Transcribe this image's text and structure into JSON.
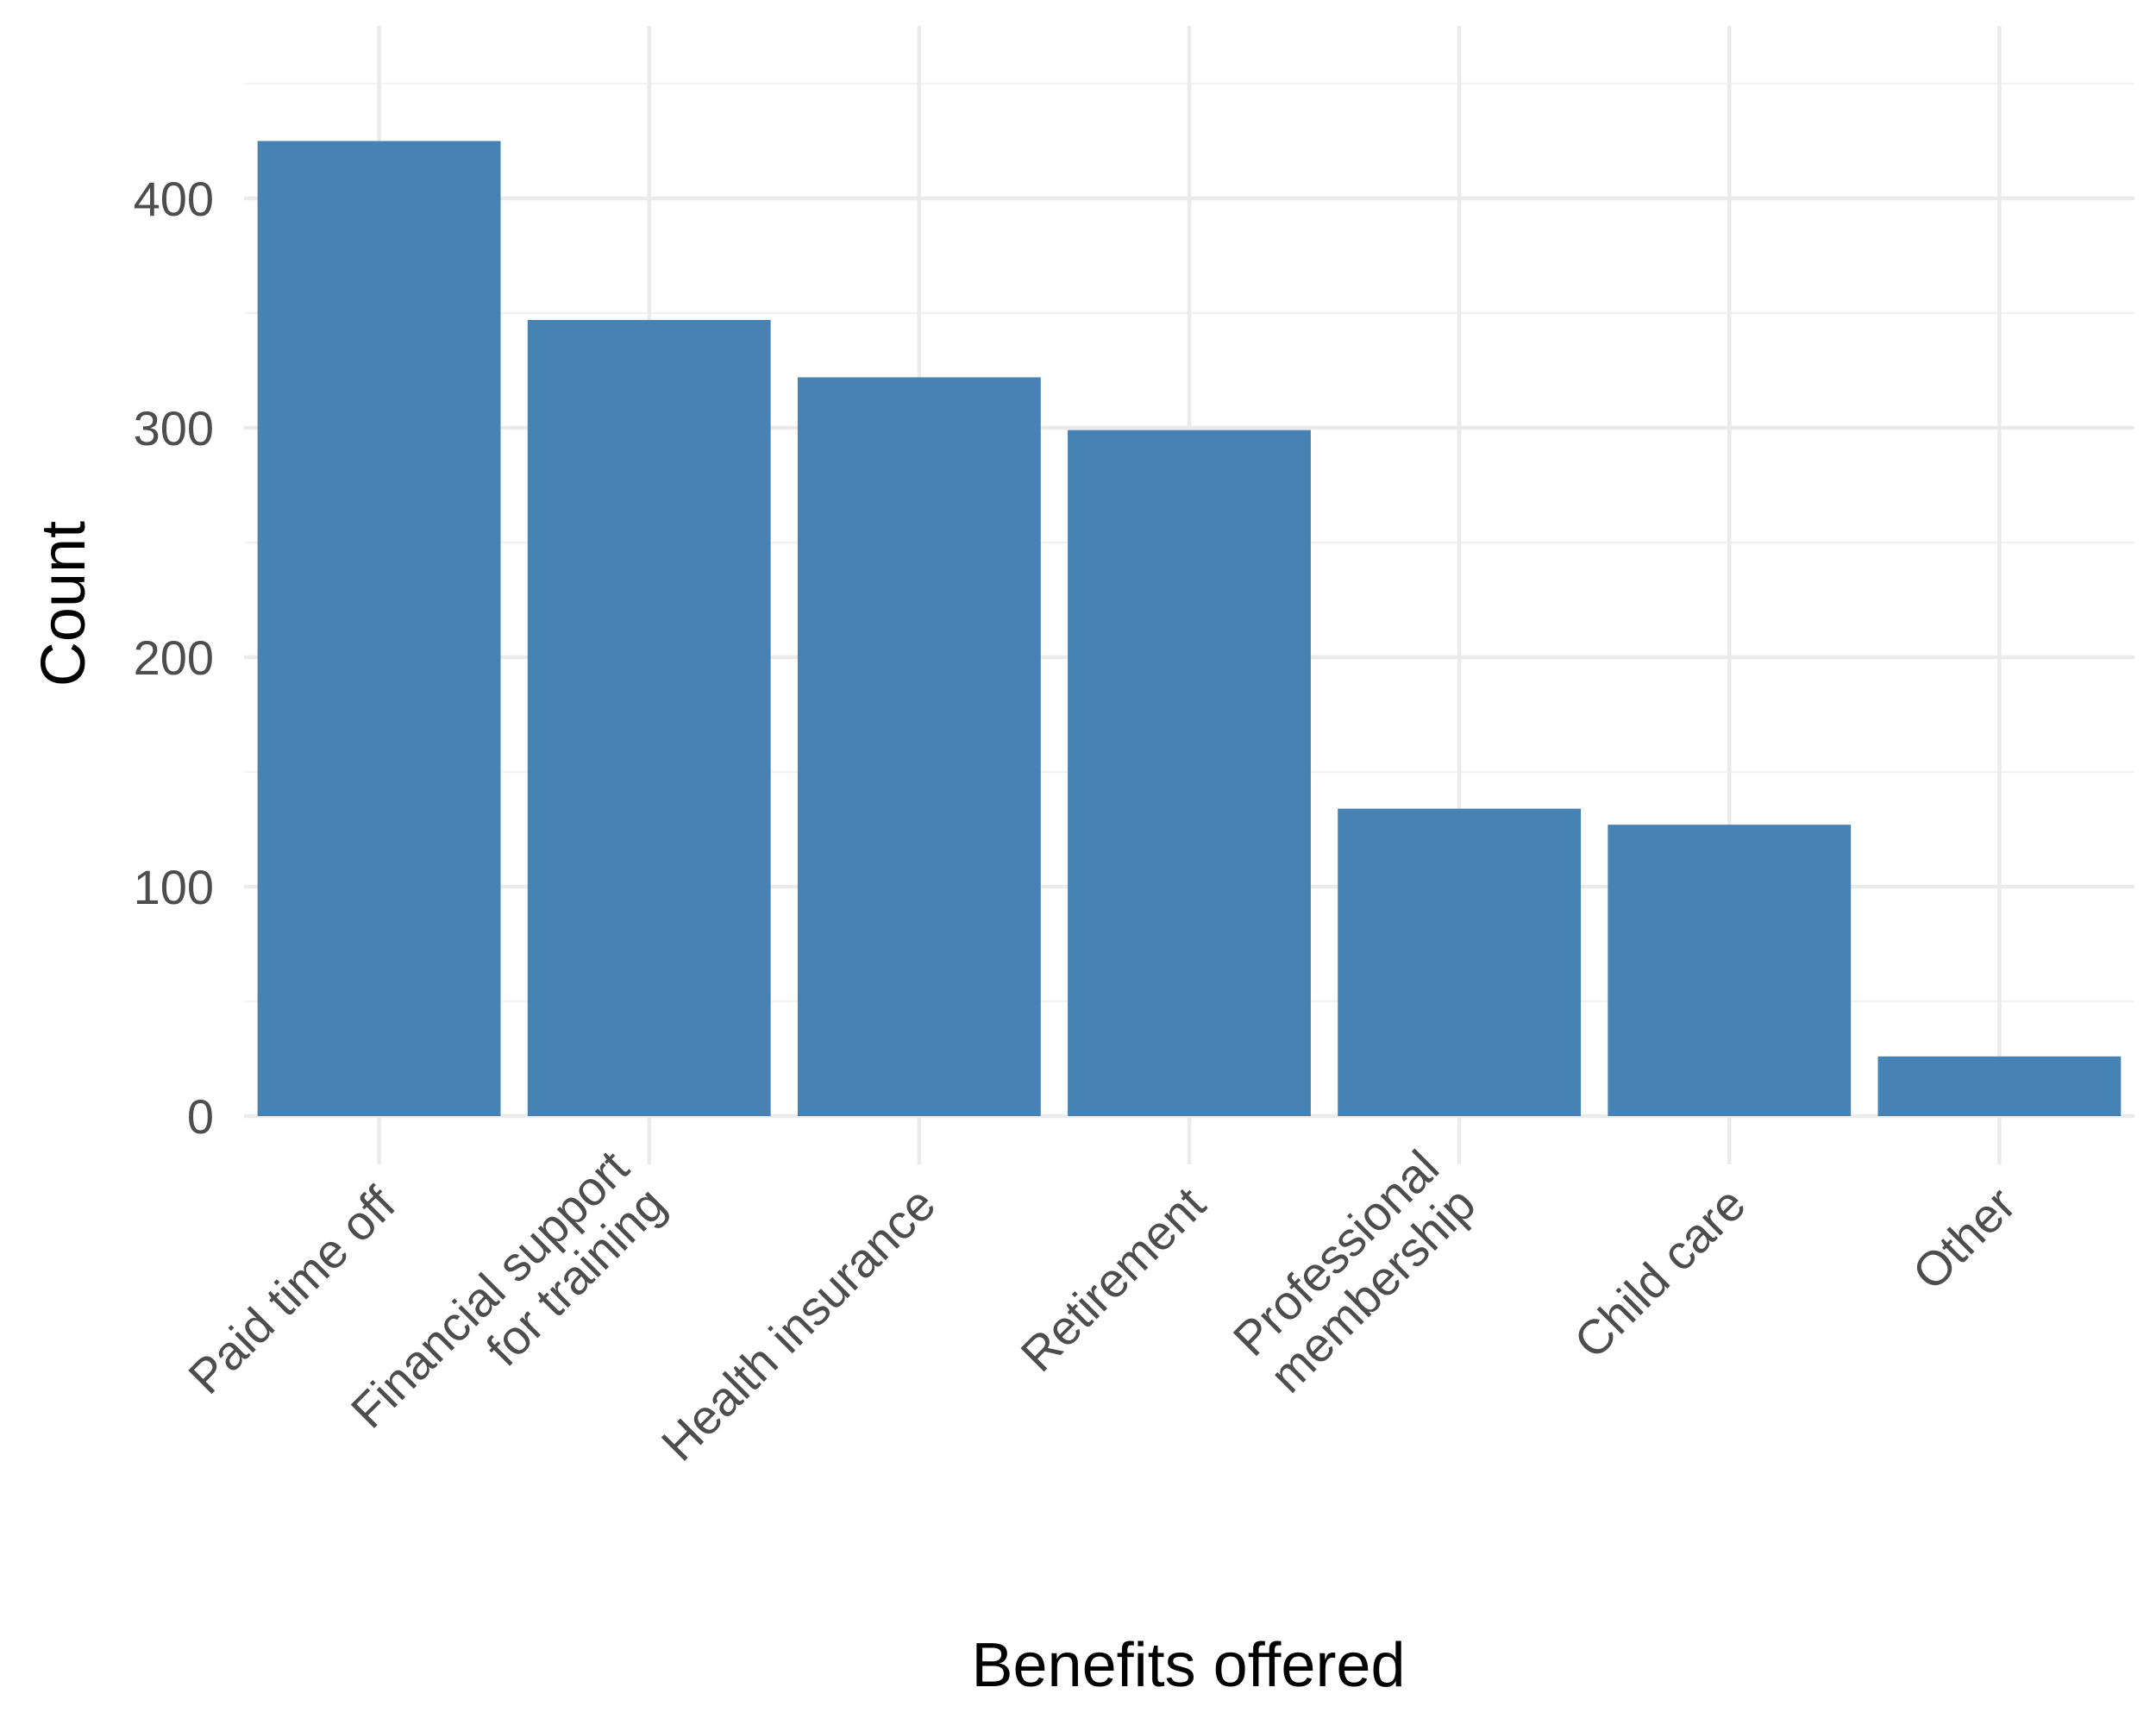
{
  "chart_data": {
    "type": "bar",
    "title": "",
    "xlabel": "Benefits offered",
    "ylabel": "Count",
    "categories": [
      [
        "Paid time off"
      ],
      [
        "Financial support",
        "for training"
      ],
      [
        "Health insurance"
      ],
      [
        "Retirement"
      ],
      [
        "Professional",
        "membership"
      ],
      [
        "Child care"
      ],
      [
        "Other"
      ]
    ],
    "values": [
      425,
      347,
      322,
      299,
      134,
      127,
      26
    ],
    "ylim": [
      0,
      475
    ],
    "yticks": [
      0,
      100,
      200,
      300,
      400
    ],
    "yticks_minor": [
      50,
      150,
      250,
      350,
      450
    ],
    "grid": true,
    "legend": "none",
    "colors": {
      "bar": "#4682b4"
    }
  }
}
